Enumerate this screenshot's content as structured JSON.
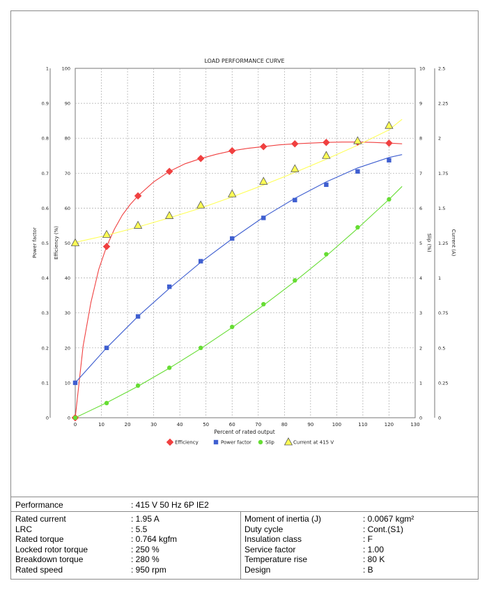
{
  "chart_data": {
    "type": "line",
    "title": "LOAD PERFORMANCE CURVE",
    "xlabel": "Percent of rated output",
    "xlim": [
      0,
      130
    ],
    "xticks": [
      0,
      10,
      20,
      30,
      40,
      50,
      60,
      70,
      80,
      90,
      100,
      110,
      120,
      130
    ],
    "grid": true,
    "legend_position": "bottom",
    "axes": {
      "power_factor": {
        "label": "Power factor",
        "side": "left-outer",
        "ticks": [
          "0",
          "0.1",
          "0.2",
          "0.3",
          "0.4",
          "0.5",
          "0.6",
          "0.7",
          "0.8",
          "0.9",
          "1"
        ],
        "lim": [
          0,
          1
        ]
      },
      "efficiency": {
        "label": "Efficiency (%)",
        "side": "left-inner",
        "ticks": [
          "0",
          "10",
          "20",
          "30",
          "40",
          "50",
          "60",
          "70",
          "80",
          "90",
          "100"
        ],
        "lim": [
          0,
          100
        ]
      },
      "slip": {
        "label": "Slip (%)",
        "side": "right-inner",
        "ticks": [
          "0",
          "1",
          "2",
          "3",
          "4",
          "5",
          "6",
          "7",
          "8",
          "9",
          "10"
        ],
        "lim": [
          0,
          10
        ]
      },
      "current": {
        "label": "Current (A)",
        "side": "right-outer",
        "ticks": [
          "0",
          "0.25",
          "0.5",
          "0.75",
          "1",
          "1.25",
          "1.5",
          "1.75",
          "2",
          "2.25",
          "2.5"
        ],
        "lim": [
          0,
          2.5
        ]
      }
    },
    "series": [
      {
        "name": "Efficiency",
        "axis": "efficiency",
        "color": "#f04040",
        "marker": "diamond",
        "x": [
          0,
          12,
          24,
          36,
          48,
          60,
          72,
          84,
          96,
          108,
          120
        ],
        "values": [
          0,
          49,
          63.5,
          70.5,
          74.2,
          76.4,
          77.6,
          78.4,
          78.8,
          78.9,
          78.6
        ],
        "curve_x": [
          0,
          3,
          6,
          9,
          12,
          15,
          18,
          21,
          24,
          30,
          36,
          42,
          48,
          54,
          60,
          66,
          72,
          78,
          84,
          90,
          96,
          102,
          108,
          114,
          120,
          125
        ],
        "curve_y": [
          0,
          20.5,
          33,
          42.5,
          49,
          54,
          58,
          61,
          63.5,
          67.5,
          70.5,
          72.7,
          74.2,
          75.4,
          76.4,
          77.1,
          77.6,
          78.1,
          78.4,
          78.6,
          78.8,
          78.9,
          78.9,
          78.8,
          78.6,
          78.4
        ]
      },
      {
        "name": "Power factor",
        "axis": "power_factor",
        "color": "#3f5fd0",
        "marker": "square",
        "x": [
          0,
          12,
          24,
          36,
          48,
          60,
          72,
          84,
          96,
          108,
          120
        ],
        "values": [
          0.1,
          0.2,
          0.29,
          0.375,
          0.448,
          0.513,
          0.572,
          0.623,
          0.667,
          0.705,
          0.737
        ],
        "curve_x": [
          0,
          12,
          24,
          36,
          48,
          60,
          72,
          84,
          96,
          108,
          120,
          125
        ],
        "curve_y": [
          0.1,
          0.2,
          0.29,
          0.37,
          0.445,
          0.512,
          0.574,
          0.628,
          0.675,
          0.715,
          0.745,
          0.753
        ]
      },
      {
        "name": "Slip",
        "axis": "slip",
        "color": "#66dd33",
        "marker": "circle",
        "x": [
          0,
          12,
          24,
          36,
          48,
          60,
          72,
          84,
          96,
          108,
          120
        ],
        "values": [
          0,
          0.42,
          0.92,
          1.43,
          2.0,
          2.6,
          3.25,
          3.93,
          4.68,
          5.45,
          6.25
        ],
        "curve_x": [
          0,
          12,
          24,
          36,
          48,
          60,
          72,
          84,
          96,
          108,
          120,
          125
        ],
        "curve_y": [
          0,
          0.43,
          0.9,
          1.42,
          1.98,
          2.58,
          3.22,
          3.9,
          4.63,
          5.42,
          6.25,
          6.62
        ]
      },
      {
        "name": "Current at 415 V",
        "axis": "current",
        "color": "#ffff55",
        "marker": "triangle",
        "x": [
          0,
          12,
          24,
          36,
          48,
          60,
          72,
          84,
          96,
          108,
          120
        ],
        "values": [
          1.25,
          1.31,
          1.375,
          1.445,
          1.52,
          1.6,
          1.69,
          1.78,
          1.875,
          1.98,
          2.09
        ],
        "curve_x": [
          0,
          12,
          24,
          36,
          48,
          60,
          72,
          84,
          96,
          108,
          120,
          125
        ],
        "curve_y": [
          1.255,
          1.305,
          1.365,
          1.43,
          1.5,
          1.58,
          1.665,
          1.755,
          1.85,
          1.95,
          2.06,
          2.135
        ]
      }
    ]
  },
  "performance": {
    "label": "Performance",
    "value": ": 415 V 50 Hz 6P IE2"
  },
  "specs_left": [
    {
      "label": "Rated current",
      "value": ": 1.95 A"
    },
    {
      "label": "LRC",
      "value": ": 5.5"
    },
    {
      "label": "Rated torque",
      "value": ": 0.764 kgfm"
    },
    {
      "label": "Locked rotor torque",
      "value": ": 250 %"
    },
    {
      "label": "Breakdown torque",
      "value": ": 280 %"
    },
    {
      "label": "Rated speed",
      "value": ": 950 rpm"
    }
  ],
  "specs_right": [
    {
      "label": "Moment of inertia (J)",
      "value": ": 0.0067 kgm²"
    },
    {
      "label": "Duty cycle",
      "value": ": Cont.(S1)"
    },
    {
      "label": "Insulation class",
      "value": ": F"
    },
    {
      "label": "Service factor",
      "value": ": 1.00"
    },
    {
      "label": "Temperature rise",
      "value": ": 80 K"
    },
    {
      "label": "Design",
      "value": ": B"
    }
  ]
}
